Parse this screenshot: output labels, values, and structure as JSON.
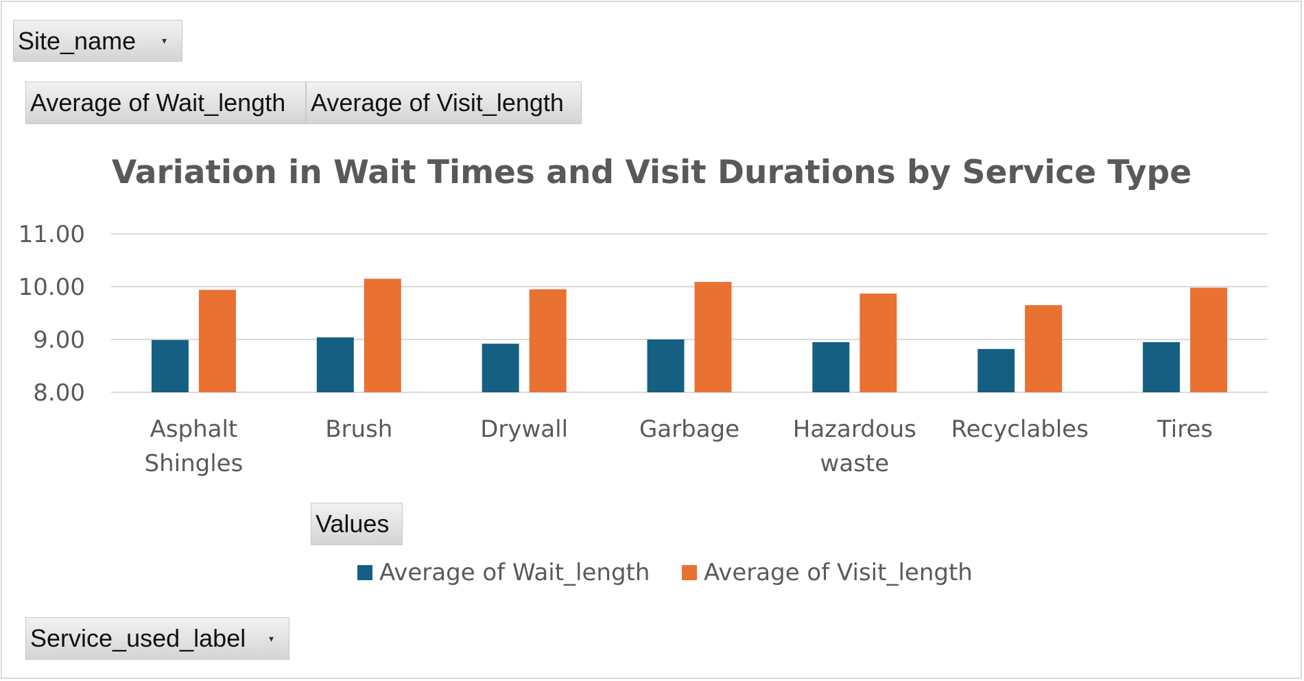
{
  "filters": {
    "page_field": "Site_name",
    "value_field_1": "Average  of Wait_length",
    "value_field_2": "Average  of Visit_length",
    "values_label": "Values",
    "axis_field": "Service_used_label",
    "dropdown_icon": "chevron-down-icon"
  },
  "colors": {
    "wait": "#156082",
    "visit": "#E97132",
    "grid": "#d9d9d9",
    "text": "#595959"
  },
  "chart_data": {
    "type": "bar",
    "title": "Variation in Wait Times and Visit Durations by Service Type",
    "categories": [
      [
        "Asphalt",
        "Shingles"
      ],
      [
        "Brush"
      ],
      [
        "Drywall"
      ],
      [
        "Garbage"
      ],
      [
        "Hazardous",
        "waste"
      ],
      [
        "Recyclables"
      ],
      [
        "Tires"
      ]
    ],
    "series": [
      {
        "name": "Average of Wait_length",
        "values": [
          8.99,
          9.04,
          8.92,
          9.0,
          8.95,
          8.82,
          8.95
        ]
      },
      {
        "name": "Average of Visit_length",
        "values": [
          9.94,
          10.15,
          9.95,
          10.09,
          9.87,
          9.65,
          9.98
        ]
      }
    ],
    "ylim": [
      8,
      11
    ],
    "yticks": [
      "8.00",
      "9.00",
      "10.00",
      "11.00"
    ],
    "xlabel": "",
    "ylabel": "",
    "grid": true,
    "legend": "bottom"
  }
}
